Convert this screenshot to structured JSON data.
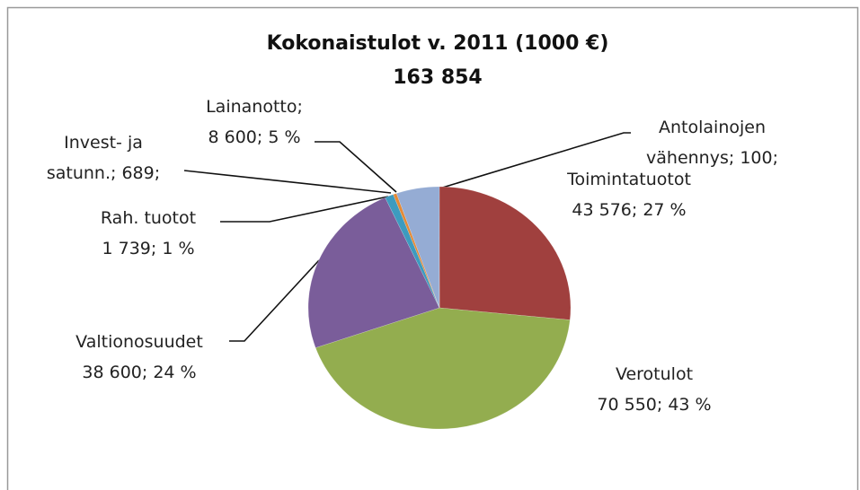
{
  "chart_data": {
    "type": "pie",
    "title": "Kokonaistulot v. 2011 (1000 €)",
    "subtitle": "163 854",
    "categories": [
      "Toimintatuotot",
      "Verotulot",
      "Valtionosuudet",
      "Rah. tuotot",
      "Invest- ja satunn.;",
      "Lainanotto;",
      "Antolainojen vähennys;"
    ],
    "values": [
      43576,
      70550,
      38600,
      1739,
      689,
      8600,
      100
    ],
    "value_labels": [
      "43 576; 27 %",
      "70 550; 43 %",
      "38 600; 24 %",
      "1 739; 1 %",
      "689;",
      "8 600; 5 %",
      "100;"
    ],
    "colors": [
      "#a0403e",
      "#93ad4f",
      "#7a5d9a",
      "#3d9bbf",
      "#e48a36",
      "#95acd4",
      "#4f81bd"
    ]
  }
}
